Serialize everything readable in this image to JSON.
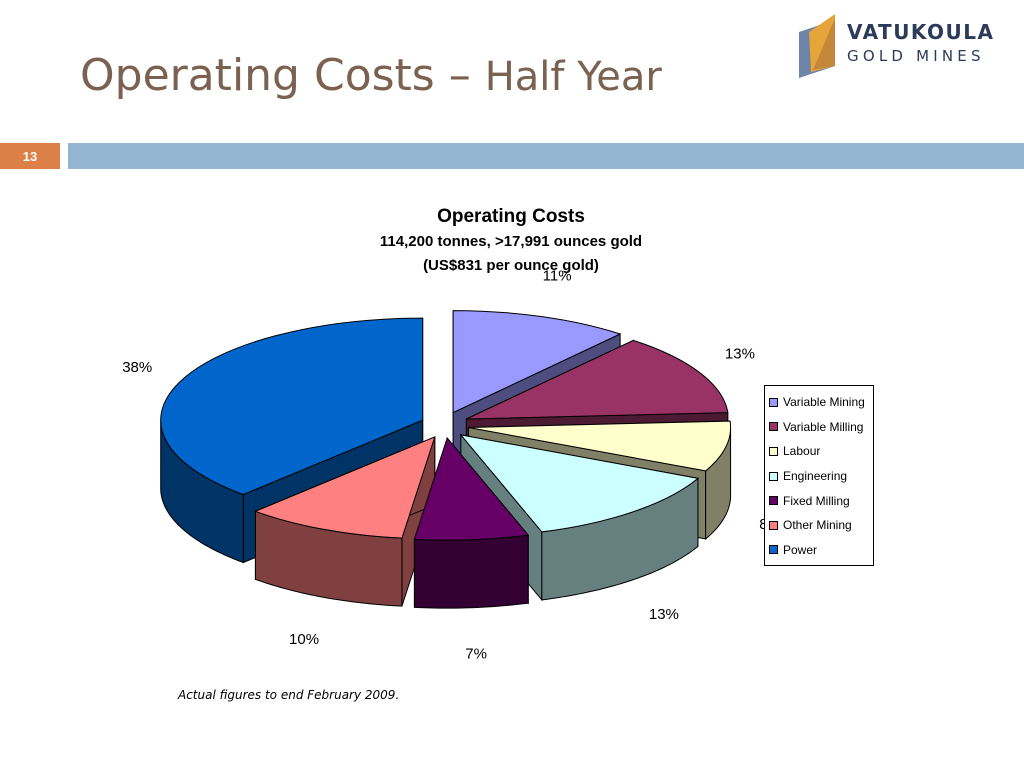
{
  "slide": {
    "title_main": "Operating Costs – ",
    "title_sub": "Half Year",
    "page_number": "13",
    "footnote": "Actual figures to end February 2009."
  },
  "logo": {
    "line1": "VATUKOULA",
    "line2": "GOLD MINES",
    "colors": {
      "text": "#2c3b5a",
      "accent": "#e6a53a",
      "mark": "#6d84a8"
    }
  },
  "chart_data": {
    "type": "pie",
    "style": "3d-exploded",
    "title": "Operating Costs",
    "subtitle": [
      "114,200 tonnes, >17,991 ounces gold",
      "(US$831 per ounce gold)"
    ],
    "legend_position": "right",
    "slices": [
      {
        "name": "Variable Mining",
        "value": 11,
        "label": "11%",
        "color": "#9999ff",
        "side": "#4d4d80"
      },
      {
        "name": "Variable Milling",
        "value": 13,
        "label": "13%",
        "color": "#993366",
        "side": "#4d1a33"
      },
      {
        "name": "Labour",
        "value": 8,
        "label": "8%",
        "color": "#ffffcc",
        "side": "#808066"
      },
      {
        "name": "Engineering",
        "value": 13,
        "label": "13%",
        "color": "#ccffff",
        "side": "#668080"
      },
      {
        "name": "Fixed Milling",
        "value": 7,
        "label": "7%",
        "color": "#660066",
        "side": "#330033"
      },
      {
        "name": "Other Mining",
        "value": 10,
        "label": "10%",
        "color": "#ff8080",
        "side": "#804040"
      },
      {
        "name": "Power",
        "value": 38,
        "label": "38%",
        "color": "#0066cc",
        "side": "#003366"
      }
    ]
  }
}
